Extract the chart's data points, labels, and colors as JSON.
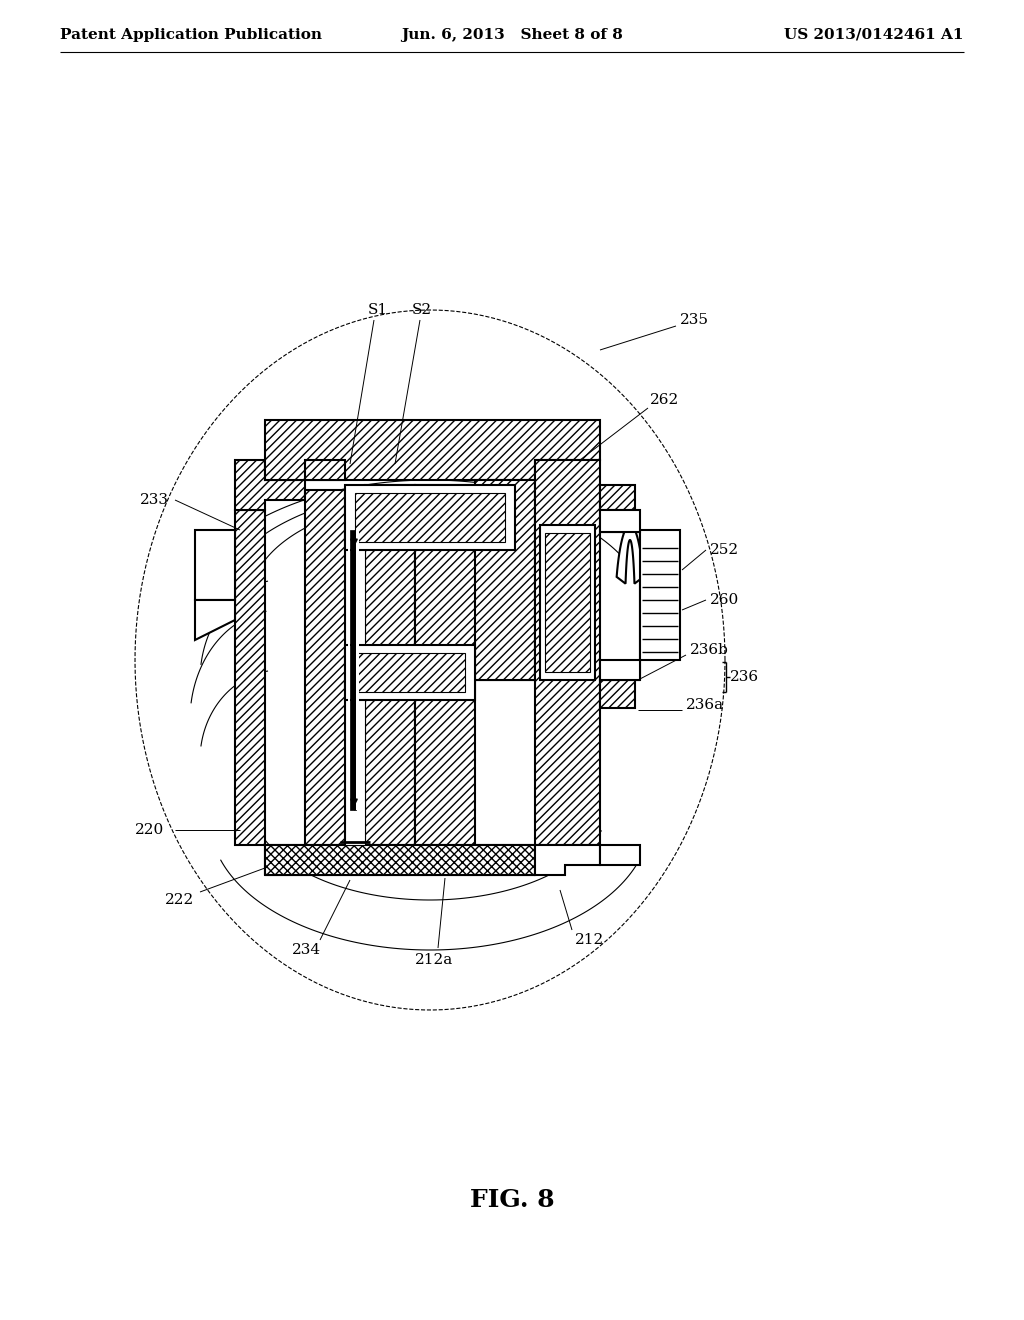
{
  "bg_color": "#ffffff",
  "line_color": "#000000",
  "header_left": "Patent Application Publication",
  "header_mid": "Jun. 6, 2013   Sheet 8 of 8",
  "header_right": "US 2013/0142461 A1",
  "fig_label": "FIG. 8",
  "figsize": [
    10.24,
    13.2
  ],
  "dpi": 100
}
